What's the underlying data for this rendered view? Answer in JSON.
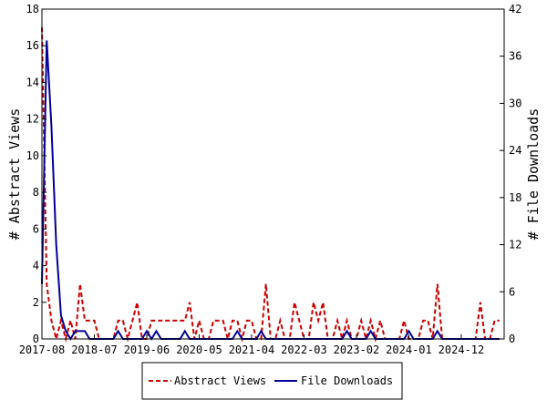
{
  "chart_data": {
    "type": "line",
    "title": "",
    "xlabel": "",
    "y_left_label": "# Abstract Views",
    "y_right_label": "# File Downloads",
    "y_left_lim": [
      0,
      18
    ],
    "y_right_lim": [
      0,
      42
    ],
    "y_left_ticks": [
      "0",
      "2",
      "4",
      "6",
      "8",
      "10",
      "12",
      "14",
      "16",
      "18"
    ],
    "y_right_ticks": [
      "0",
      "6",
      "12",
      "18",
      "24",
      "30",
      "36",
      "42"
    ],
    "x_tick_labels": [
      "2017-08",
      "2018-07",
      "2019-06",
      "2020-05",
      "2021-04",
      "2022-03",
      "2023-02",
      "2024-01",
      "2024-12"
    ],
    "x_start": "2017-08",
    "x_end": "2025-09",
    "grid": false,
    "legend_position": "bottom",
    "series": [
      {
        "name": "Abstract Views",
        "axis": "left",
        "color": "#cc0000",
        "style": "dashed",
        "points": [
          [
            "2017-08",
            17
          ],
          [
            "2017-09",
            3
          ],
          [
            "2017-10",
            1
          ],
          [
            "2017-11",
            0
          ],
          [
            "2017-12",
            1
          ],
          [
            "2018-01",
            0
          ],
          [
            "2018-02",
            1
          ],
          [
            "2018-03",
            0
          ],
          [
            "2018-04",
            3
          ],
          [
            "2018-05",
            1
          ],
          [
            "2018-06",
            1
          ],
          [
            "2018-07",
            1
          ],
          [
            "2018-08",
            0
          ],
          [
            "2018-09",
            0
          ],
          [
            "2018-10",
            0
          ],
          [
            "2018-11",
            0
          ],
          [
            "2018-12",
            1
          ],
          [
            "2019-01",
            1
          ],
          [
            "2019-02",
            0
          ],
          [
            "2019-03",
            1
          ],
          [
            "2019-04",
            2
          ],
          [
            "2019-05",
            0
          ],
          [
            "2019-06",
            0
          ],
          [
            "2019-07",
            1
          ],
          [
            "2019-08",
            1
          ],
          [
            "2019-09",
            1
          ],
          [
            "2019-10",
            1
          ],
          [
            "2019-11",
            1
          ],
          [
            "2019-12",
            1
          ],
          [
            "2020-01",
            1
          ],
          [
            "2020-02",
            1
          ],
          [
            "2020-03",
            2
          ],
          [
            "2020-04",
            0
          ],
          [
            "2020-05",
            1
          ],
          [
            "2020-06",
            0
          ],
          [
            "2020-07",
            0
          ],
          [
            "2020-08",
            1
          ],
          [
            "2020-09",
            1
          ],
          [
            "2020-10",
            1
          ],
          [
            "2020-11",
            0
          ],
          [
            "2020-12",
            1
          ],
          [
            "2021-01",
            1
          ],
          [
            "2021-02",
            0
          ],
          [
            "2021-03",
            1
          ],
          [
            "2021-04",
            1
          ],
          [
            "2021-05",
            0
          ],
          [
            "2021-06",
            0
          ],
          [
            "2021-07",
            3
          ],
          [
            "2021-08",
            0
          ],
          [
            "2021-09",
            0
          ],
          [
            "2021-10",
            1
          ],
          [
            "2021-11",
            0
          ],
          [
            "2021-12",
            0
          ],
          [
            "2022-01",
            2
          ],
          [
            "2022-02",
            1
          ],
          [
            "2022-03",
            0
          ],
          [
            "2022-04",
            0
          ],
          [
            "2022-05",
            2
          ],
          [
            "2022-06",
            1
          ],
          [
            "2022-07",
            2
          ],
          [
            "2022-08",
            0
          ],
          [
            "2022-09",
            0
          ],
          [
            "2022-10",
            1
          ],
          [
            "2022-11",
            0
          ],
          [
            "2022-12",
            1
          ],
          [
            "2023-01",
            0
          ],
          [
            "2023-02",
            0
          ],
          [
            "2023-03",
            1
          ],
          [
            "2023-04",
            0
          ],
          [
            "2023-05",
            1
          ],
          [
            "2023-06",
            0
          ],
          [
            "2023-07",
            1
          ],
          [
            "2023-08",
            0
          ],
          [
            "2023-09",
            0
          ],
          [
            "2023-10",
            0
          ],
          [
            "2023-11",
            0
          ],
          [
            "2023-12",
            1
          ],
          [
            "2024-01",
            0
          ],
          [
            "2024-02",
            0
          ],
          [
            "2024-03",
            0
          ],
          [
            "2024-04",
            1
          ],
          [
            "2024-05",
            1
          ],
          [
            "2024-06",
            0
          ],
          [
            "2024-07",
            3
          ],
          [
            "2024-08",
            0
          ],
          [
            "2024-09",
            0
          ],
          [
            "2024-10",
            0
          ],
          [
            "2024-11",
            0
          ],
          [
            "2024-12",
            0
          ],
          [
            "2025-01",
            0
          ],
          [
            "2025-02",
            0
          ],
          [
            "2025-03",
            0
          ],
          [
            "2025-04",
            2
          ],
          [
            "2025-05",
            0
          ],
          [
            "2025-06",
            0
          ],
          [
            "2025-07",
            1
          ],
          [
            "2025-08",
            1
          ]
        ]
      },
      {
        "name": "File Downloads",
        "axis": "right",
        "color": "#000099",
        "style": "solid",
        "points": [
          [
            "2017-08",
            7
          ],
          [
            "2017-09",
            38
          ],
          [
            "2017-10",
            27
          ],
          [
            "2017-11",
            12
          ],
          [
            "2017-12",
            3
          ],
          [
            "2018-01",
            1
          ],
          [
            "2018-02",
            0
          ],
          [
            "2018-03",
            1
          ],
          [
            "2018-04",
            1
          ],
          [
            "2018-05",
            1
          ],
          [
            "2018-06",
            0
          ],
          [
            "2018-07",
            0
          ],
          [
            "2018-08",
            0
          ],
          [
            "2018-09",
            0
          ],
          [
            "2018-10",
            0
          ],
          [
            "2018-11",
            0
          ],
          [
            "2018-12",
            1
          ],
          [
            "2019-01",
            0
          ],
          [
            "2019-02",
            0
          ],
          [
            "2019-03",
            0
          ],
          [
            "2019-04",
            0
          ],
          [
            "2019-05",
            0
          ],
          [
            "2019-06",
            1
          ],
          [
            "2019-07",
            0
          ],
          [
            "2019-08",
            1
          ],
          [
            "2019-09",
            0
          ],
          [
            "2019-10",
            0
          ],
          [
            "2019-11",
            0
          ],
          [
            "2019-12",
            0
          ],
          [
            "2020-01",
            0
          ],
          [
            "2020-02",
            1
          ],
          [
            "2020-03",
            0
          ],
          [
            "2020-04",
            0
          ],
          [
            "2020-05",
            0
          ],
          [
            "2020-06",
            0
          ],
          [
            "2020-07",
            0
          ],
          [
            "2020-08",
            0
          ],
          [
            "2020-09",
            0
          ],
          [
            "2020-10",
            0
          ],
          [
            "2020-11",
            0
          ],
          [
            "2020-12",
            0
          ],
          [
            "2021-01",
            1
          ],
          [
            "2021-02",
            0
          ],
          [
            "2021-03",
            0
          ],
          [
            "2021-04",
            0
          ],
          [
            "2021-05",
            0
          ],
          [
            "2021-06",
            1
          ],
          [
            "2021-07",
            0
          ],
          [
            "2021-08",
            0
          ],
          [
            "2021-09",
            0
          ],
          [
            "2021-10",
            0
          ],
          [
            "2021-11",
            0
          ],
          [
            "2021-12",
            0
          ],
          [
            "2022-01",
            0
          ],
          [
            "2022-02",
            0
          ],
          [
            "2022-03",
            0
          ],
          [
            "2022-04",
            0
          ],
          [
            "2022-05",
            0
          ],
          [
            "2022-06",
            0
          ],
          [
            "2022-07",
            0
          ],
          [
            "2022-08",
            0
          ],
          [
            "2022-09",
            0
          ],
          [
            "2022-10",
            0
          ],
          [
            "2022-11",
            0
          ],
          [
            "2022-12",
            1
          ],
          [
            "2023-01",
            0
          ],
          [
            "2023-02",
            0
          ],
          [
            "2023-03",
            0
          ],
          [
            "2023-04",
            0
          ],
          [
            "2023-05",
            1
          ],
          [
            "2023-06",
            0
          ],
          [
            "2023-07",
            0
          ],
          [
            "2023-08",
            0
          ],
          [
            "2023-09",
            0
          ],
          [
            "2023-10",
            0
          ],
          [
            "2023-11",
            0
          ],
          [
            "2023-12",
            0
          ],
          [
            "2024-01",
            1
          ],
          [
            "2024-02",
            0
          ],
          [
            "2024-03",
            0
          ],
          [
            "2024-04",
            0
          ],
          [
            "2024-05",
            0
          ],
          [
            "2024-06",
            0
          ],
          [
            "2024-07",
            1
          ],
          [
            "2024-08",
            0
          ],
          [
            "2024-09",
            0
          ],
          [
            "2024-10",
            0
          ],
          [
            "2024-11",
            0
          ],
          [
            "2024-12",
            0
          ],
          [
            "2025-01",
            0
          ],
          [
            "2025-02",
            0
          ],
          [
            "2025-03",
            0
          ],
          [
            "2025-04",
            0
          ],
          [
            "2025-05",
            0
          ],
          [
            "2025-06",
            0
          ],
          [
            "2025-07",
            0
          ],
          [
            "2025-08",
            0
          ]
        ]
      }
    ]
  }
}
